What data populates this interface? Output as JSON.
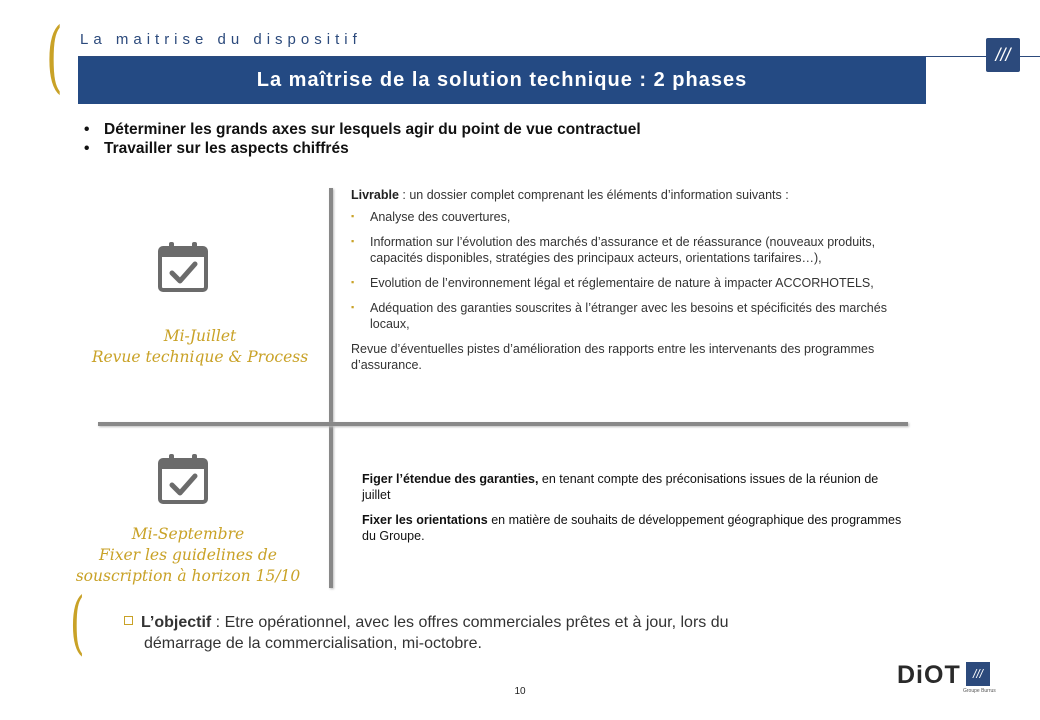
{
  "header": {
    "section_label": "La maitrise du dispositif",
    "title": "La maîtrise de la solution technique : 2 phases",
    "open_paren": "("
  },
  "bullets": [
    "Déterminer les grands axes sur lesquels agir du point de vue contractuel",
    "Travailler sur les aspects chiffrés"
  ],
  "phase1": {
    "label_line1": "Mi-Juillet",
    "label_line2": "Revue technique & Process",
    "icon": "calendar-check-icon",
    "livrable_bold": "Livrable",
    "livrable_rest": " : un dossier complet comprenant les éléments d’information suivants :",
    "items": [
      "Analyse des couvertures,",
      "Information sur l’évolution des marchés d’assurance et de réassurance (nouveaux produits, capacités disponibles, stratégies des principaux acteurs, orientations tarifaires…),",
      "Evolution de l’environnement légal et réglementaire de nature à impacter ACCORHOTELS,",
      "Adéquation des garanties souscrites à l’étranger avec les besoins et spécificités des marchés locaux,"
    ],
    "footer": "Revue d’éventuelles pistes d’amélioration des rapports entre les intervenants des programmes d’assurance."
  },
  "phase2": {
    "label_line1": "Mi-Septembre",
    "label_line2": "Fixer les guidelines de",
    "label_line3": "souscription à horizon 15/10",
    "icon": "calendar-check-icon",
    "p1_bold": "Figer l’étendue des garanties,",
    "p1_rest": " en tenant compte des préconisations issues de la réunion de juillet",
    "p2_bold": "Fixer les orientations",
    "p2_rest": " en matière de souhaits de développement géographique des programmes du Groupe."
  },
  "objective": {
    "bold": "L’objectif",
    "line1_rest": " : Etre opérationnel, avec les offres commerciales prêtes et à jour, lors du",
    "line2": "démarrage de la commercialisation, mi-octobre."
  },
  "footer": {
    "page_number": "10",
    "brand": "DiOT",
    "brand_sub": "Groupe Burrus"
  },
  "colors": {
    "accent_gold": "#c9a227",
    "brand_blue": "#244a83"
  }
}
